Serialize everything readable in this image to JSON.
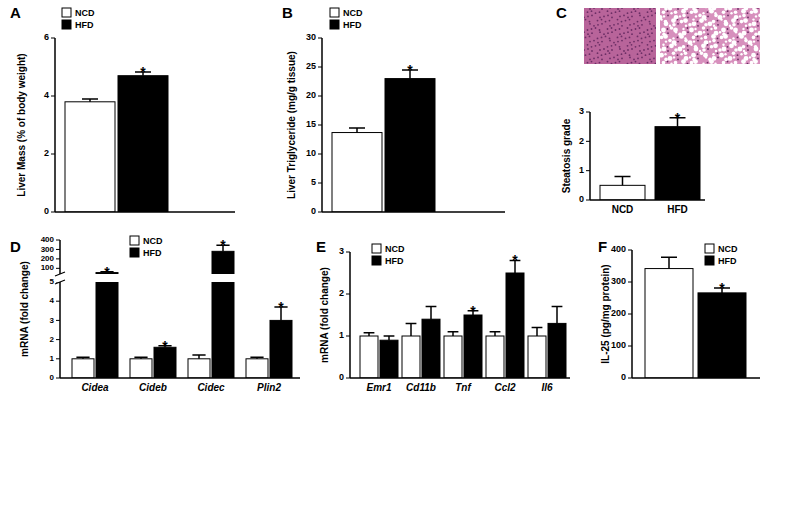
{
  "chart_data": [
    {
      "type": "bar",
      "title": "A",
      "y_label": "Liver Mass (% of body weight)",
      "categories": [
        null
      ],
      "series": [
        {
          "name": "NCD",
          "color": "#ffffff",
          "values": [
            3.8
          ],
          "errors": [
            0.1
          ]
        },
        {
          "name": "HFD",
          "color": "#000000",
          "values": [
            4.7
          ],
          "errors": [
            0.13
          ],
          "significance": [
            true
          ]
        }
      ],
      "significance_mark": "*",
      "ylim": [
        0,
        6
      ],
      "yticks": [
        0,
        2,
        4,
        6
      ],
      "legend": "top-left"
    },
    {
      "type": "bar",
      "title": "B",
      "y_label": "Liver Triglyceride (mg/g tissue)",
      "categories": [
        null
      ],
      "series": [
        {
          "name": "NCD",
          "color": "#ffffff",
          "values": [
            13.7
          ],
          "errors": [
            0.8
          ]
        },
        {
          "name": "HFD",
          "color": "#000000",
          "values": [
            23
          ],
          "errors": [
            1.5
          ],
          "significance": [
            true
          ]
        }
      ],
      "significance_mark": "*",
      "ylim": [
        0,
        30
      ],
      "yticks": [
        0,
        5,
        10,
        15,
        20,
        25,
        30
      ],
      "legend": "top-left"
    },
    {
      "type": "bar",
      "title": "C",
      "y_label": "Steatosis grade",
      "categories": [
        "NCD",
        "HFD"
      ],
      "series": [
        {
          "values": [
            0.5,
            2.5
          ],
          "errors": [
            0.3,
            0.3
          ],
          "significance": [
            false,
            true
          ],
          "colors": [
            "#ffffff",
            "#000000"
          ]
        }
      ],
      "significance_mark": "*",
      "ylim": [
        0,
        3
      ],
      "yticks": [
        0,
        1,
        2,
        3
      ]
    },
    {
      "type": "bar",
      "title": "D",
      "y_label": "mRNA (fold change)",
      "categories": [
        "Cidea",
        "Cideb",
        "Cidec",
        "Plin2"
      ],
      "series": [
        {
          "name": "NCD",
          "color": "#ffffff",
          "values": [
            1,
            1,
            1,
            1
          ],
          "errors": [
            0.08,
            0.08,
            0.2,
            0.08
          ]
        },
        {
          "name": "HFD",
          "color": "#000000",
          "values": [
            55,
            1.6,
            280,
            3.0
          ],
          "errors": [
            8,
            0.08,
            65,
            0.7
          ],
          "significance": [
            true,
            true,
            true,
            true
          ]
        }
      ],
      "significance_mark": "*",
      "ylim": [
        0,
        400
      ],
      "ybreak": [
        5,
        40
      ],
      "yticks": [
        0,
        1,
        2,
        3,
        4,
        5,
        100,
        200,
        300,
        400
      ],
      "legend": "top-left"
    },
    {
      "type": "bar",
      "title": "E",
      "y_label": "mRNA (fold change)",
      "categories": [
        "Emr1",
        "Cd11b",
        "Tnf",
        "Ccl2",
        "Il6"
      ],
      "series": [
        {
          "name": "NCD",
          "color": "#ffffff",
          "values": [
            1,
            1,
            1,
            1,
            1
          ],
          "errors": [
            0.08,
            0.3,
            0.1,
            0.1,
            0.2
          ]
        },
        {
          "name": "HFD",
          "color": "#000000",
          "values": [
            0.9,
            1.4,
            1.5,
            2.5,
            1.3
          ],
          "errors": [
            0.1,
            0.3,
            0.1,
            0.3,
            0.4
          ],
          "significance": [
            false,
            false,
            true,
            true,
            false
          ]
        }
      ],
      "significance_mark": "*",
      "ylim": [
        0,
        3
      ],
      "yticks": [
        0,
        1,
        2,
        3
      ],
      "legend": "top-left"
    },
    {
      "type": "bar",
      "title": "F",
      "y_label": "IL-25 (pg/mg protein)",
      "categories": [
        null
      ],
      "series": [
        {
          "name": "NCD",
          "color": "#ffffff",
          "values": [
            342
          ],
          "errors": [
            35
          ]
        },
        {
          "name": "HFD",
          "color": "#000000",
          "values": [
            266
          ],
          "errors": [
            15
          ],
          "significance": [
            true
          ]
        }
      ],
      "significance_mark": "*",
      "ylim": [
        0,
        400
      ],
      "yticks": [
        0,
        100,
        200,
        300,
        400
      ],
      "legend": "top-right"
    }
  ]
}
